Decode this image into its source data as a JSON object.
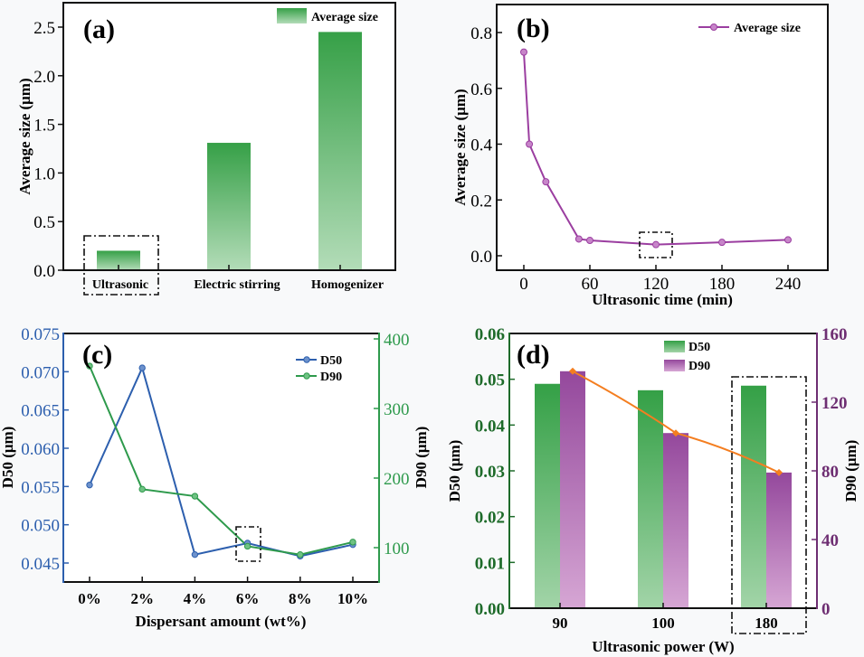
{
  "chart_data": [
    {
      "id": "a",
      "type": "bar",
      "panel_label": "(a)",
      "title": "",
      "categories": [
        "Ultrasonic",
        "Electric stirring",
        "Homogenizer"
      ],
      "values": [
        0.2,
        1.31,
        2.45
      ],
      "series_name": "Average size",
      "xlabel": "",
      "ylabel": "Average size (μm)",
      "ylim": [
        0,
        2.7
      ],
      "yticks": [
        0.0,
        0.5,
        1.0,
        1.5,
        2.0,
        2.5
      ],
      "ytick_labels": [
        "0.0",
        "0.5",
        "1.0",
        "1.5",
        "2.0",
        "2.5"
      ],
      "legend": "top-right",
      "highlight": "Ultrasonic",
      "colors": {
        "bar_top": "#36a047",
        "bar_bottom": "#b3dcb8"
      }
    },
    {
      "id": "b",
      "type": "line",
      "panel_label": "(b)",
      "x": [
        0,
        5,
        20,
        50,
        60,
        120,
        180,
        240
      ],
      "series": [
        {
          "name": "Average size",
          "values": [
            0.73,
            0.4,
            0.265,
            0.06,
            0.055,
            0.04,
            0.048,
            0.057
          ]
        }
      ],
      "xlabel": "Ultrasonic time (min)",
      "ylabel": "Average size (μm)",
      "xlim": [
        -20,
        280
      ],
      "ylim": [
        -0.05,
        0.89
      ],
      "xticks": [
        0,
        60,
        120,
        180,
        240
      ],
      "xtick_labels": [
        "0",
        "60",
        "120",
        "180",
        "240"
      ],
      "yticks": [
        0.0,
        0.2,
        0.4,
        0.6,
        0.8
      ],
      "ytick_labels": [
        "0.0",
        "0.2",
        "0.4",
        "0.6",
        "0.8"
      ],
      "legend": "top-right",
      "highlight_x": 120,
      "colors": {
        "line": "#9b3ea0"
      }
    },
    {
      "id": "c",
      "type": "line",
      "panel_label": "(c)",
      "categories": [
        "0%",
        "2%",
        "4%",
        "6%",
        "8%",
        "10%"
      ],
      "series": [
        {
          "name": "D50",
          "axis": "left",
          "values": [
            0.0552,
            0.0705,
            0.0461,
            0.0476,
            0.0459,
            0.0474
          ]
        },
        {
          "name": "D90",
          "axis": "right",
          "values": [
            361,
            184,
            174,
            102,
            90,
            108
          ]
        }
      ],
      "xlabel": "Dispersant amount (wt%)",
      "ylabel": "D50  (μm)",
      "ylabel_right": "D90  (μm)",
      "ylim": [
        0.0425,
        0.075
      ],
      "ylim_right": [
        50,
        408
      ],
      "yticks": [
        0.045,
        0.05,
        0.055,
        0.06,
        0.065,
        0.07,
        0.075
      ],
      "ytick_labels": [
        "0.045",
        "0.050",
        "0.055",
        "0.060",
        "0.065",
        "0.070",
        "0.075"
      ],
      "yticks_right": [
        100,
        200,
        300,
        400
      ],
      "ytick_labels_right": [
        "100",
        "200",
        "300",
        "400"
      ],
      "legend": "top-right",
      "highlight": "6%",
      "colors": {
        "d50": "#2d5fae",
        "d90": "#2e9a4c",
        "left_axis": "#2d5fae",
        "right_axis": "#2e9a4c"
      }
    },
    {
      "id": "d",
      "type": "bar",
      "panel_label": "(d)",
      "categories": [
        "90",
        "100",
        "180"
      ],
      "series": [
        {
          "name": "D50",
          "axis": "left",
          "values": [
            0.049,
            0.0476,
            0.0486
          ]
        },
        {
          "name": "D90",
          "axis": "right",
          "values": [
            138,
            102,
            79
          ]
        }
      ],
      "trend_line": {
        "axis": "right",
        "values": [
          138,
          102,
          79
        ]
      },
      "xlabel": "Ultrasonic power (W)",
      "ylabel": "D50 (μm)",
      "ylabel_right": "D90 (μm)",
      "ylim": [
        0,
        0.06
      ],
      "ylim_right": [
        0,
        160
      ],
      "yticks": [
        0.0,
        0.01,
        0.02,
        0.03,
        0.04,
        0.05,
        0.06
      ],
      "ytick_labels": [
        "0.00",
        "0.01",
        "0.02",
        "0.03",
        "0.04",
        "0.05",
        "0.06"
      ],
      "yticks_right": [
        0,
        40,
        80,
        120,
        160
      ],
      "ytick_labels_right": [
        "0",
        "40",
        "80",
        "120",
        "160"
      ],
      "legend": "top-center",
      "highlight": "180",
      "colors": {
        "d50_top": "#34a046",
        "d50_bottom": "#a2d4a8",
        "d90_top": "#94489c",
        "d90_bottom": "#d6a6d4",
        "trend": "#f47e20",
        "left_axis": "#1e6b2a",
        "right_axis": "#6e2e72"
      }
    }
  ]
}
